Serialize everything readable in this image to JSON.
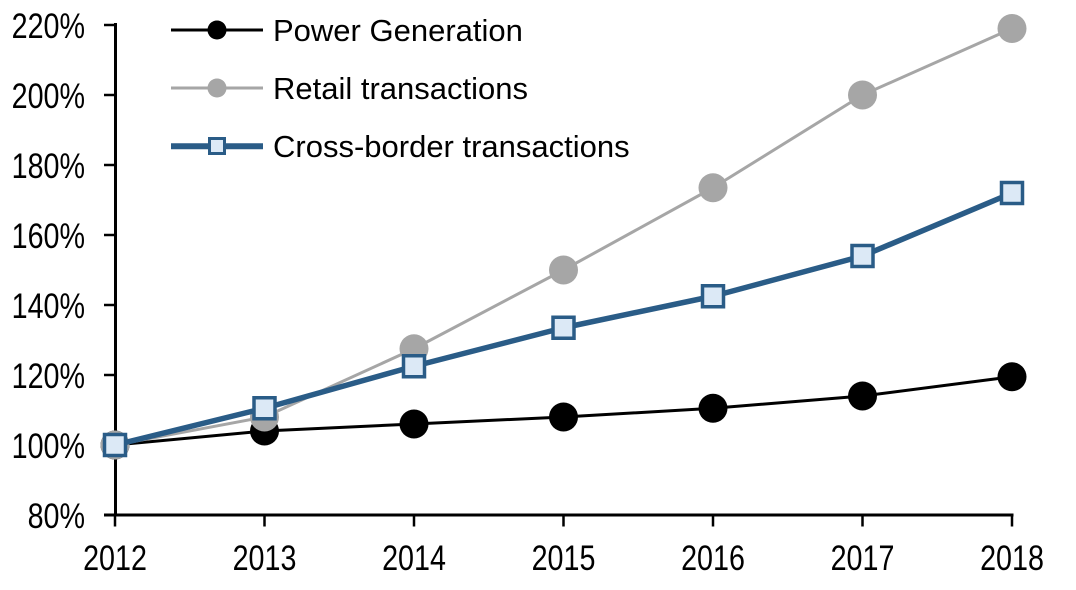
{
  "chart_data": {
    "type": "line",
    "title": "",
    "xlabel": "",
    "ylabel": "",
    "categories": [
      "2012",
      "2013",
      "2014",
      "2015",
      "2016",
      "2017",
      "2018"
    ],
    "series": [
      {
        "name": "Power Generation",
        "values": [
          100,
          104,
          106,
          108,
          110.5,
          114,
          119.5
        ],
        "color": "#000000",
        "marker": "circle",
        "marker_fill": "#000000",
        "line_width": 3
      },
      {
        "name": "Retail transactions",
        "values": [
          100,
          108,
          127.5,
          150,
          173.5,
          200,
          219
        ],
        "color": "#A6A6A6",
        "marker": "circle",
        "marker_fill": "#A6A6A6",
        "line_width": 3
      },
      {
        "name": "Cross-border transactions",
        "values": [
          100,
          110.5,
          122.5,
          133.5,
          142.5,
          154,
          172
        ],
        "color": "#2A5C87",
        "marker": "square",
        "marker_fill": "#DCE9F6",
        "line_width": 5.5
      }
    ],
    "ylim": [
      80,
      220
    ],
    "y_ticks": [
      80,
      100,
      120,
      140,
      160,
      180,
      200,
      220
    ],
    "y_tick_labels": [
      "80%",
      "100%",
      "120%",
      "140%",
      "160%",
      "180%",
      "200%",
      "220%"
    ],
    "grid": false,
    "legend_position": "top-left",
    "axis_color": "#000000",
    "background": "#FFFFFF"
  }
}
